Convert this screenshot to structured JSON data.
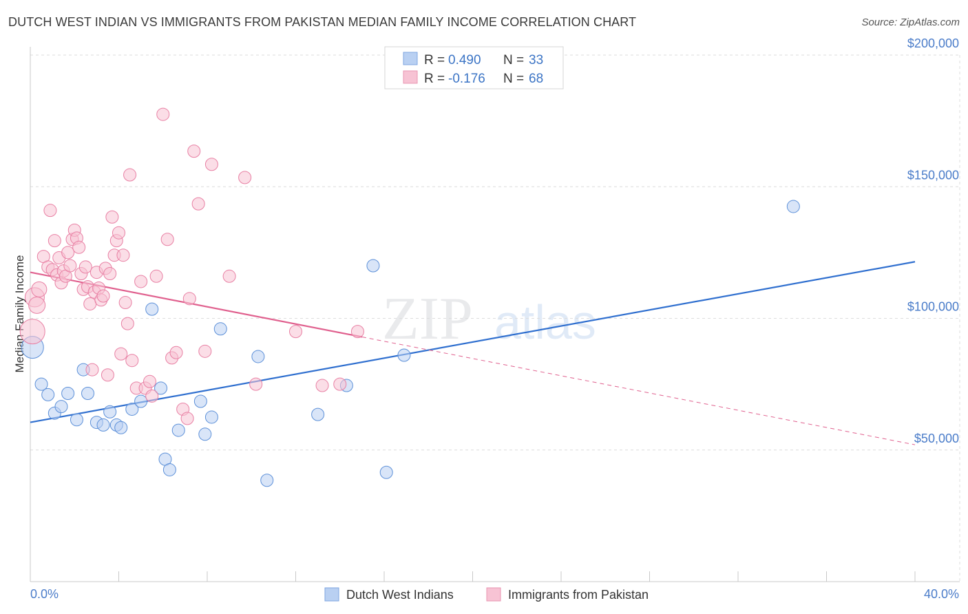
{
  "title": "DUTCH WEST INDIAN VS IMMIGRANTS FROM PAKISTAN MEDIAN FAMILY INCOME CORRELATION CHART",
  "source": "Source: ZipAtlas.com",
  "watermark": {
    "zip": "ZIP",
    "atlas": "atlas"
  },
  "colors": {
    "blue": "#5b8fd8",
    "blue_fill": "#b9d0f2",
    "blue_line": "#2f6fcf",
    "pink": "#e87fa3",
    "pink_fill": "#f7c3d4",
    "pink_line": "#e0608e",
    "axis_text": "#4a7cc9"
  },
  "legend": {
    "r_label": "R =",
    "n_label": "N =",
    "series": [
      {
        "name": "Dutch West Indians",
        "r": "0.490",
        "n": "33"
      },
      {
        "name": "Immigrants from Pakistan",
        "r": "-0.176",
        "n": "68"
      }
    ]
  },
  "chart_data": {
    "type": "scatter",
    "title": "DUTCH WEST INDIAN VS IMMIGRANTS FROM PAKISTAN MEDIAN FAMILY INCOME CORRELATION CHART",
    "xlabel": "",
    "ylabel": "Median Family Income",
    "xlim": [
      0,
      40
    ],
    "ylim": [
      0,
      200000
    ],
    "x_tick_labels": [
      "0.0%",
      "40.0%"
    ],
    "y_ticks": [
      50000,
      100000,
      150000,
      200000
    ],
    "y_tick_labels": [
      "$50,000",
      "$100,000",
      "$150,000",
      "$200,000"
    ],
    "series": [
      {
        "name": "Dutch West Indians",
        "color": "#5b8fd8",
        "trend": {
          "x0": 0,
          "y0": 60500,
          "x1": 40,
          "y1": 121500,
          "solid_until": 40
        },
        "points": [
          [
            0.1,
            89000,
            16
          ],
          [
            0.5,
            75000,
            9
          ],
          [
            0.8,
            71000,
            9
          ],
          [
            1.1,
            64000,
            9
          ],
          [
            1.4,
            66500,
            9
          ],
          [
            1.7,
            71500,
            9
          ],
          [
            2.1,
            61500,
            9
          ],
          [
            2.4,
            80500,
            9
          ],
          [
            2.6,
            71500,
            9
          ],
          [
            3.0,
            60500,
            9
          ],
          [
            3.3,
            59500,
            9
          ],
          [
            3.6,
            64500,
            9
          ],
          [
            3.9,
            59500,
            9
          ],
          [
            4.1,
            58500,
            9
          ],
          [
            4.6,
            65500,
            9
          ],
          [
            5.0,
            68500,
            9
          ],
          [
            5.5,
            103500,
            9
          ],
          [
            5.9,
            73500,
            9
          ],
          [
            6.1,
            46500,
            9
          ],
          [
            6.3,
            42500,
            9
          ],
          [
            6.7,
            57500,
            9
          ],
          [
            7.7,
            68500,
            9
          ],
          [
            7.9,
            56000,
            9
          ],
          [
            8.2,
            62500,
            9
          ],
          [
            8.6,
            96000,
            9
          ],
          [
            10.3,
            85500,
            9
          ],
          [
            10.7,
            38500,
            9
          ],
          [
            13.0,
            63500,
            9
          ],
          [
            14.3,
            74500,
            9
          ],
          [
            15.5,
            120000,
            9
          ],
          [
            16.1,
            41500,
            9
          ],
          [
            16.9,
            86000,
            9
          ],
          [
            34.5,
            142500,
            9
          ]
        ]
      },
      {
        "name": "Immigrants from Pakistan",
        "color": "#e87fa3",
        "trend": {
          "x0": 0,
          "y0": 117500,
          "x1": 40,
          "y1": 52000,
          "solid_until": 15
        },
        "points": [
          [
            0.1,
            95000,
            18
          ],
          [
            0.2,
            108000,
            14
          ],
          [
            0.3,
            105000,
            12
          ],
          [
            0.4,
            111000,
            11
          ],
          [
            0.6,
            123500,
            9
          ],
          [
            0.8,
            119500,
            9
          ],
          [
            0.9,
            141000,
            9
          ],
          [
            1.0,
            118500,
            9
          ],
          [
            1.1,
            129500,
            9
          ],
          [
            1.2,
            116500,
            9
          ],
          [
            1.3,
            123000,
            9
          ],
          [
            1.4,
            113500,
            9
          ],
          [
            1.5,
            118000,
            9
          ],
          [
            1.6,
            116000,
            9
          ],
          [
            1.7,
            125000,
            9
          ],
          [
            1.8,
            120000,
            9
          ],
          [
            1.9,
            130000,
            9
          ],
          [
            2.0,
            133500,
            9
          ],
          [
            2.1,
            130500,
            9
          ],
          [
            2.2,
            127000,
            9
          ],
          [
            2.3,
            117000,
            9
          ],
          [
            2.4,
            111000,
            9
          ],
          [
            2.5,
            119500,
            9
          ],
          [
            2.6,
            112000,
            9
          ],
          [
            2.7,
            105500,
            9
          ],
          [
            2.8,
            80500,
            9
          ],
          [
            2.9,
            110000,
            9
          ],
          [
            3.0,
            117500,
            9
          ],
          [
            3.1,
            111500,
            9
          ],
          [
            3.2,
            107000,
            9
          ],
          [
            3.3,
            108500,
            9
          ],
          [
            3.4,
            119000,
            9
          ],
          [
            3.5,
            78500,
            9
          ],
          [
            3.6,
            117000,
            9
          ],
          [
            3.7,
            138500,
            9
          ],
          [
            3.8,
            124000,
            9
          ],
          [
            3.9,
            129500,
            9
          ],
          [
            4.0,
            132500,
            9
          ],
          [
            4.1,
            86500,
            9
          ],
          [
            4.2,
            124000,
            9
          ],
          [
            4.3,
            106000,
            9
          ],
          [
            4.4,
            98000,
            9
          ],
          [
            4.5,
            154500,
            9
          ],
          [
            4.6,
            84000,
            9
          ],
          [
            4.8,
            73500,
            9
          ],
          [
            5.0,
            114000,
            9
          ],
          [
            5.2,
            73500,
            9
          ],
          [
            5.4,
            76000,
            9
          ],
          [
            5.5,
            70500,
            9
          ],
          [
            5.7,
            116000,
            9
          ],
          [
            6.0,
            177500,
            9
          ],
          [
            6.2,
            130000,
            9
          ],
          [
            6.4,
            85000,
            9
          ],
          [
            6.6,
            87000,
            9
          ],
          [
            6.9,
            65500,
            9
          ],
          [
            7.1,
            62000,
            9
          ],
          [
            7.2,
            107500,
            9
          ],
          [
            7.4,
            163500,
            9
          ],
          [
            7.6,
            143500,
            9
          ],
          [
            7.9,
            87500,
            9
          ],
          [
            8.2,
            158500,
            9
          ],
          [
            9.0,
            116000,
            9
          ],
          [
            9.7,
            153500,
            9
          ],
          [
            10.2,
            75000,
            9
          ],
          [
            12.0,
            95000,
            9
          ],
          [
            13.2,
            74500,
            9
          ],
          [
            14.0,
            75000,
            9
          ],
          [
            14.8,
            95000,
            9
          ]
        ]
      }
    ]
  }
}
